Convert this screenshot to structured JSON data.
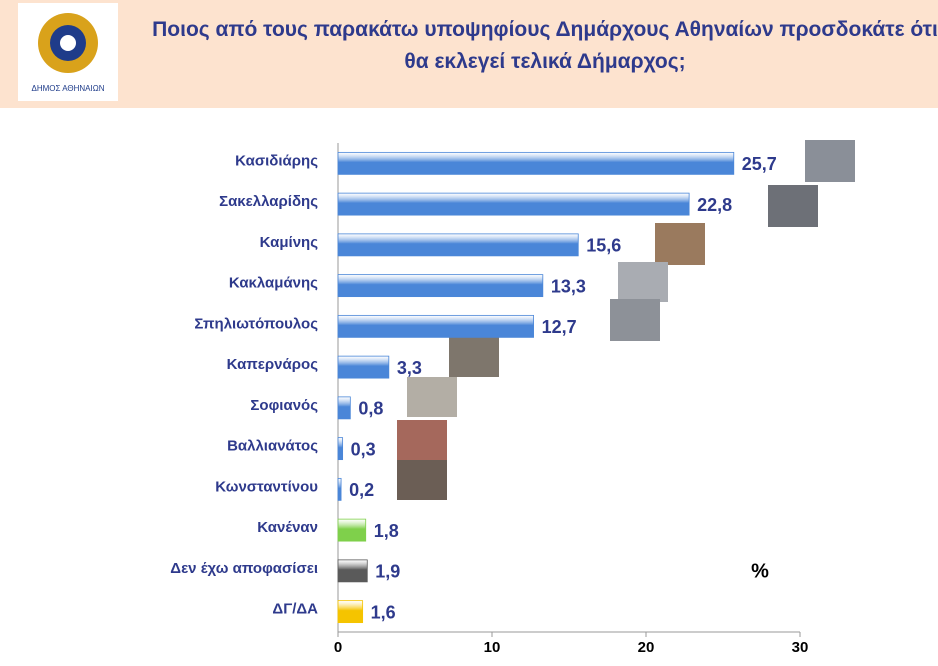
{
  "chart_data": {
    "type": "bar",
    "orientation": "horizontal",
    "title": "Ποιος από τους παρακάτω υποψηφίους Δημάρχους Αθηναίων προσδοκάτε ότι θα εκλεγεί τελικά Δήμαρχος;",
    "logo_text": "ΔΗΜΟΣ ΑΘΗΝΑΙΩΝ",
    "unit_label": "%",
    "categories": [
      "Κασιδιάρης",
      "Σακελλαρίδης",
      "Καμίνης",
      "Κακλαμάνης",
      "Σπηλιωτόπουλος",
      "Καπερνάρος",
      "Σοφιανός",
      "Βαλλιανάτος",
      "Κωνσταντίνου",
      "Κανέναν",
      "Δεν έχω αποφασίσει",
      "ΔΓ/ΔΑ"
    ],
    "values": [
      25.7,
      22.8,
      15.6,
      13.3,
      12.7,
      3.3,
      0.8,
      0.3,
      0.2,
      1.8,
      1.9,
      1.6
    ],
    "value_labels": [
      "25,7",
      "22,8",
      "15,6",
      "13,3",
      "12,7",
      "3,3",
      "0,8",
      "0,3",
      "0,2",
      "1,8",
      "1,9",
      "1,6"
    ],
    "colors": [
      "#4a86d8",
      "#4a86d8",
      "#4a86d8",
      "#4a86d8",
      "#4a86d8",
      "#4a86d8",
      "#4a86d8",
      "#4a86d8",
      "#4a86d8",
      "#7fd04b",
      "#5a5a5a",
      "#f5c400"
    ],
    "xlim": [
      0,
      30
    ],
    "xticks": [
      0,
      10,
      20,
      30
    ],
    "grid": false
  }
}
